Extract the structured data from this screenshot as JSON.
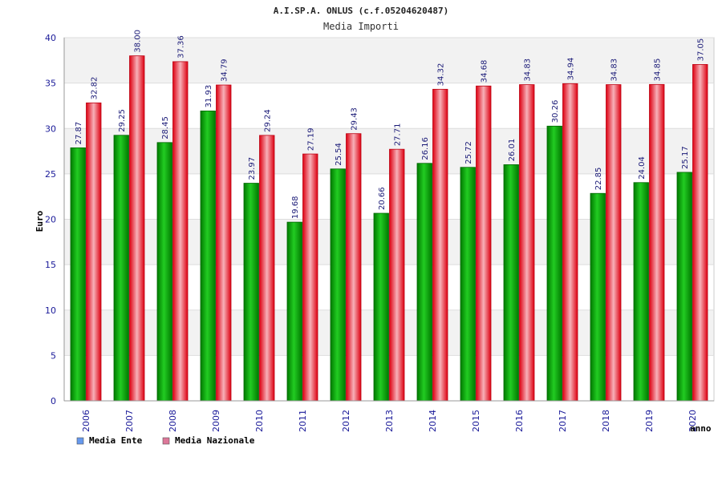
{
  "chart_data": {
    "type": "bar",
    "title": "A.I.SP.A. ONLUS (c.f.05204620487)",
    "subtitle": "Media Importi",
    "xlabel": "anno",
    "ylabel": "Euro",
    "ylim": [
      0,
      40
    ],
    "yticks": [
      0,
      5,
      10,
      15,
      20,
      25,
      30,
      35,
      40
    ],
    "yticklabels": [
      "0",
      "5",
      "10",
      "15",
      "20",
      "25",
      "30",
      "35",
      "40"
    ],
    "grid": true,
    "legend_position": "bottom-left",
    "categories": [
      "2006",
      "2007",
      "2008",
      "2009",
      "2010",
      "2011",
      "2012",
      "2013",
      "2014",
      "2015",
      "2016",
      "2017",
      "2018",
      "2019",
      "2020"
    ],
    "series": [
      {
        "name": "Media Ente",
        "color": "#00aa00",
        "legend_color": "#6699ee",
        "values": [
          27.87,
          29.25,
          28.45,
          31.93,
          23.97,
          19.68,
          25.54,
          20.66,
          26.16,
          25.72,
          26.01,
          30.26,
          22.85,
          24.04,
          25.17
        ],
        "labels": [
          "27.87",
          "29.25",
          "28.45",
          "31.93",
          "23.97",
          "19.68",
          "25.54",
          "20.66",
          "26.16",
          "25.72",
          "26.01",
          "30.26",
          "22.85",
          "24.04",
          "25.17"
        ]
      },
      {
        "name": "Media Nazionale",
        "color": "#ee1122",
        "legend_color": "#dd7799",
        "values": [
          32.82,
          38.0,
          37.36,
          34.79,
          29.24,
          27.19,
          29.43,
          27.71,
          34.32,
          34.68,
          34.83,
          34.94,
          34.83,
          34.85,
          37.05
        ],
        "labels": [
          "32.82",
          "38.00",
          "37.36",
          "34.79",
          "29.24",
          "27.19",
          "29.43",
          "27.71",
          "34.32",
          "34.68",
          "34.83",
          "34.94",
          "34.83",
          "34.85",
          "37.05"
        ]
      }
    ]
  }
}
